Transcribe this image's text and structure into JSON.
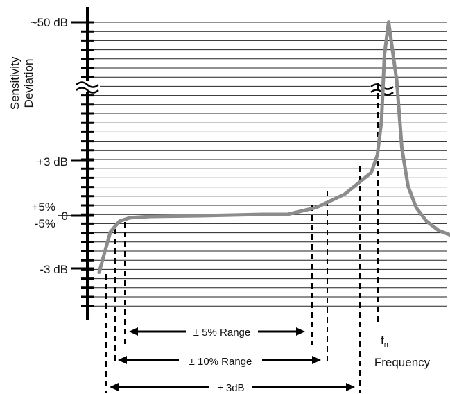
{
  "chart_data": {
    "type": "line",
    "title": "",
    "xlabel": "Frequency",
    "ylabel": [
      "Sensitivity",
      "Deviation"
    ],
    "y_tick_labels": [
      "~50 dB",
      "+3 dB",
      "+5%",
      "0",
      "-5%",
      "-3 dB"
    ],
    "peak_label": "fn",
    "axis_break": true,
    "grid": "horizontal",
    "series": [
      {
        "points": [
          [
            0.0,
            -4.2
          ],
          [
            0.2,
            -3.1
          ],
          [
            0.55,
            -1.2
          ],
          [
            1.0,
            -0.4
          ],
          [
            1.5,
            -0.15
          ],
          [
            2.5,
            -0.05
          ],
          [
            5.0,
            0.0
          ],
          [
            8.0,
            0.1
          ],
          [
            9.2,
            0.1
          ],
          [
            10.6,
            0.6
          ],
          [
            12.0,
            1.6
          ],
          [
            13.3,
            3.2
          ],
          [
            13.6,
            4.5
          ],
          [
            13.8,
            7.0
          ],
          [
            13.95,
            12.0
          ],
          [
            14.15,
            14.4
          ],
          [
            14.55,
            10.0
          ],
          [
            14.8,
            5.0
          ],
          [
            15.1,
            2.2
          ],
          [
            15.5,
            0.6
          ],
          [
            16.0,
            -0.4
          ],
          [
            16.6,
            -1.1
          ],
          [
            17.2,
            -1.45
          ]
        ]
      }
    ],
    "ranges": [
      {
        "label": "± 5% Range",
        "from": 0.75,
        "to": 10.2
      },
      {
        "label": "± 10% Range",
        "from": 0.55,
        "to": 10.8
      },
      {
        "label": "± 3dB",
        "from": 0.2,
        "to": 13.3
      }
    ],
    "colors": {
      "curve": "#8c8c8c",
      "grid": "#222222",
      "axis": "#000000",
      "text": "#111111"
    }
  }
}
